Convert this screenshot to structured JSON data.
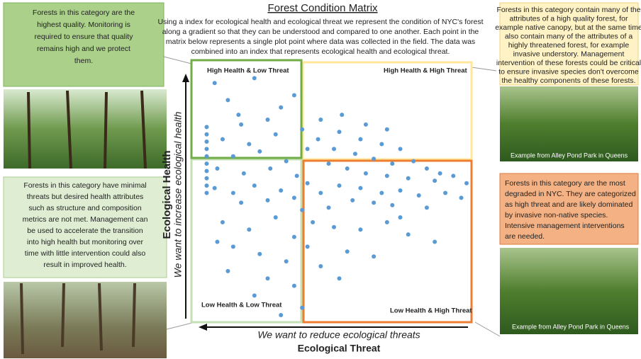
{
  "title": "Forest Condition Matrix",
  "description": [
    "Using a index for ecological health and ecological threat we represent the condition of NYC's forest",
    "along a gradient so that they can be understood and compared to one another. Each point in the",
    "matrix below represents a single plot point where data was collected in the field. The data was",
    "combined into an index that represents ecological health and ecological threat."
  ],
  "axes": {
    "y_label": "Ecological Health",
    "y_arrow_label": "We want to increase ecological health",
    "x_label": "Ecological Threat",
    "x_arrow_label": "We want to reduce ecological threats"
  },
  "quadrants": {
    "high_health_low_threat": "High Health & Low Threat",
    "high_health_high_threat": "High Health & High Threat",
    "low_health_low_threat": "Low Health & Low Threat",
    "low_health_high_threat": "Low Health & High Threat"
  },
  "panels": {
    "top_left": [
      "Forests in this category are the",
      "highest quality. Monitoring is",
      "required to ensure that quality",
      "remains high and we protect",
      "them."
    ],
    "bottom_left": [
      "Forests in this category have minimal",
      "threats but desired health attributes",
      "such as structure and composition",
      "metrics are not met. Management can",
      "be used to accelerate the transition",
      "into high health but monitoring over",
      "time with little intervention could also",
      "result in improved health."
    ],
    "top_right": [
      "Forests in this category contain many of the",
      "attributes of a high quality forest, for",
      "example native canopy, but at the same time",
      "also contain many of the attributes of a",
      "highly threatened forest, for example",
      "invasive understory. Management",
      "intervention of these forests could be critical",
      "to ensure invasive species don't overcome",
      "the healthy components of these forests."
    ],
    "bottom_right": [
      "Forests in this category are the most",
      "degraded in NYC. They are categorized",
      "as high threat and are likely dominated",
      "by invasive non-native species.",
      "Intensive management interventions",
      "are needed."
    ]
  },
  "captions": {
    "top_right": "Example from Alley Pond Park in Queens",
    "bottom_right": "Example from Alley Pond Park in Queens"
  },
  "points": {
    "x": [
      2,
      2,
      2,
      2,
      2,
      2,
      2,
      2,
      2,
      2,
      5,
      10,
      20,
      30,
      35,
      25,
      15,
      8,
      18,
      28,
      38,
      12,
      22,
      32,
      40,
      6,
      16,
      26,
      36,
      14,
      45,
      52,
      60,
      68,
      75,
      50,
      58,
      65,
      72,
      80,
      85,
      90,
      48,
      55,
      62,
      70,
      78,
      88,
      95,
      100,
      44,
      53,
      62,
      70,
      5,
      12,
      20,
      30,
      40,
      45,
      52,
      60,
      68,
      75,
      82,
      92,
      98,
      35,
      25,
      15,
      57,
      65,
      72,
      85,
      48,
      38,
      8,
      18,
      28,
      35,
      42,
      50,
      60,
      70,
      78,
      88,
      12,
      22,
      32,
      40,
      55,
      65,
      10,
      25,
      35,
      20,
      38,
      30,
      45,
      52,
      75,
      6
    ],
    "y": [
      50,
      53,
      56,
      59,
      62,
      65,
      68,
      71,
      74,
      77,
      95,
      88,
      97,
      85,
      90,
      80,
      78,
      72,
      70,
      74,
      76,
      65,
      67,
      63,
      68,
      60,
      58,
      60,
      57,
      82,
      80,
      75,
      72,
      70,
      68,
      68,
      66,
      64,
      62,
      63,
      60,
      58,
      62,
      60,
      58,
      57,
      56,
      55,
      57,
      54,
      72,
      82,
      78,
      76,
      52,
      50,
      53,
      51,
      54,
      50,
      53,
      52,
      50,
      51,
      49,
      50,
      48,
      48,
      47,
      46,
      47,
      46,
      45,
      44,
      44,
      43,
      38,
      35,
      40,
      32,
      38,
      36,
      35,
      38,
      33,
      30,
      28,
      25,
      22,
      28,
      26,
      24,
      18,
      15,
      12,
      8,
      3,
      0,
      20,
      15,
      40,
      30
    ]
  }
}
